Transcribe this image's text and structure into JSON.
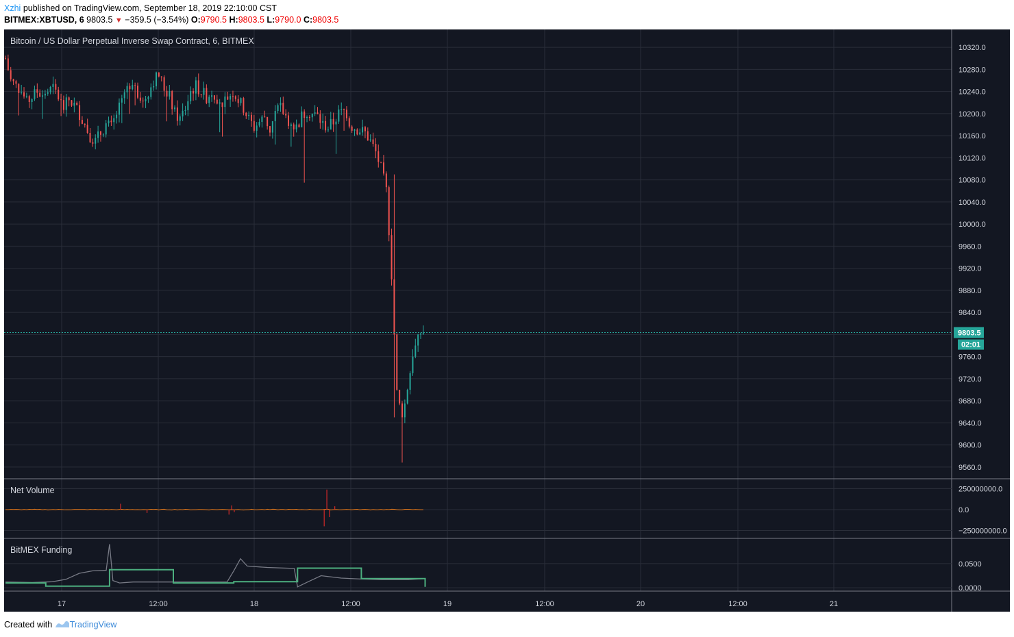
{
  "header": {
    "user": "Xzhi",
    "published_text": "published on TradingView.com, September 18, 2019 22:10:00 CST",
    "symbol": "BITMEX:XBTUSD, 6",
    "last": "9803.5",
    "change": "−359.5 (−3.54%)",
    "o_label": "O:",
    "o_value": "9790.5",
    "h_label": "H:",
    "h_value": "9803.5",
    "l_label": "L:",
    "l_value": "9790.0",
    "c_label": "C:",
    "c_value": "9803.5"
  },
  "footer": {
    "created_with": "Created with",
    "brand": "TradingView"
  },
  "colors": {
    "background": "#131722",
    "grid": "#2a2e39",
    "up": "#26a69a",
    "down": "#ef5350",
    "price_line": "#26a69a",
    "funding": "#4caf7f",
    "funding_premium": "#787b86",
    "volume_pos": "#f57f17",
    "volume_neg": "#c62828"
  },
  "chart_data": [
    {
      "type": "candlestick",
      "title": "Bitcoin / US Dollar Perpetual Inverse Swap Contract, 6, BITMEX",
      "ylim": [
        9540,
        10340
      ],
      "y_ticks": [
        "10320.0",
        "10280.0",
        "10240.0",
        "10200.0",
        "10160.0",
        "10120.0",
        "10080.0",
        "10040.0",
        "10000.0",
        "9960.0",
        "9920.0",
        "9880.0",
        "9840.0",
        "9800.0",
        "9760.0",
        "9720.0",
        "9680.0",
        "9640.0",
        "9600.0",
        "9560.0"
      ],
      "current_price": "9803.5",
      "countdown": "02:01",
      "x_ticks": [
        "17",
        "12:00",
        "18",
        "12:00",
        "19",
        "12:00",
        "20",
        "12:00",
        "21"
      ],
      "path_close": [
        [
          0,
          10300
        ],
        [
          2,
          10260
        ],
        [
          4,
          10250
        ],
        [
          6,
          10240
        ],
        [
          8,
          10220
        ],
        [
          10,
          10230
        ],
        [
          12,
          10240
        ],
        [
          14,
          10235
        ],
        [
          16,
          10240
        ],
        [
          18,
          10245
        ],
        [
          20,
          10230
        ],
        [
          22,
          10210
        ],
        [
          24,
          10225
        ],
        [
          26,
          10215
        ],
        [
          28,
          10200
        ],
        [
          30,
          10180
        ],
        [
          32,
          10160
        ],
        [
          34,
          10150
        ],
        [
          36,
          10165
        ],
        [
          38,
          10180
        ],
        [
          40,
          10175
        ],
        [
          42,
          10200
        ],
        [
          44,
          10220
        ],
        [
          46,
          10250
        ],
        [
          48,
          10260
        ],
        [
          50,
          10240
        ],
        [
          52,
          10220
        ],
        [
          54,
          10240
        ],
        [
          56,
          10260
        ],
        [
          58,
          10270
        ],
        [
          60,
          10245
        ],
        [
          62,
          10230
        ],
        [
          64,
          10200
        ],
        [
          66,
          10190
        ],
        [
          68,
          10210
        ],
        [
          70,
          10240
        ],
        [
          72,
          10250
        ],
        [
          74,
          10240
        ],
        [
          76,
          10230
        ],
        [
          78,
          10240
        ],
        [
          80,
          10230
        ],
        [
          82,
          10220
        ],
        [
          84,
          10230
        ],
        [
          86,
          10240
        ],
        [
          88,
          10225
        ],
        [
          90,
          10210
        ],
        [
          92,
          10190
        ],
        [
          94,
          10175
        ],
        [
          96,
          10185
        ],
        [
          98,
          10195
        ],
        [
          100,
          10170
        ],
        [
          102,
          10200
        ],
        [
          104,
          10210
        ],
        [
          106,
          10195
        ],
        [
          108,
          10180
        ],
        [
          110,
          10175
        ],
        [
          112,
          10195
        ],
        [
          114,
          10205
        ],
        [
          116,
          10200
        ],
        [
          118,
          10195
        ],
        [
          120,
          10180
        ],
        [
          122,
          10175
        ],
        [
          124,
          10185
        ],
        [
          126,
          10200
        ],
        [
          128,
          10205
        ],
        [
          130,
          10180
        ],
        [
          132,
          10175
        ],
        [
          134,
          10170
        ],
        [
          136,
          10165
        ],
        [
          138,
          10150
        ],
        [
          140,
          10130
        ],
        [
          142,
          10100
        ],
        [
          144,
          10060
        ],
        [
          146,
          9900
        ],
        [
          148,
          9700
        ],
        [
          150,
          9650
        ],
        [
          152,
          9700
        ],
        [
          154,
          9760
        ],
        [
          156,
          9800
        ],
        [
          158,
          9803.5
        ]
      ],
      "annotations": {
        "low_wick": 9568,
        "high_mark": 10305
      }
    },
    {
      "type": "line",
      "title": "Net Volume",
      "y_ticks": [
        "250000000.0",
        "0.0",
        "−250000000.0"
      ],
      "ylim": [
        -320000000,
        320000000
      ],
      "spikes": [
        [
          43,
          70000000
        ],
        [
          53,
          -40000000
        ],
        [
          84,
          -60000000
        ],
        [
          85,
          50000000
        ],
        [
          86,
          -30000000
        ],
        [
          120,
          -200000000
        ],
        [
          121,
          240000000
        ],
        [
          122,
          -90000000
        ],
        [
          124,
          40000000
        ]
      ]
    },
    {
      "type": "line",
      "title": "BitMEX Funding",
      "y_ticks": [
        "0.0500",
        "0.0000"
      ],
      "ylim": [
        -0.004,
        0.095
      ],
      "funding_steps": [
        [
          0,
          0.01
        ],
        [
          12,
          0.01
        ],
        [
          12,
          0.0035
        ],
        [
          31,
          0.0035
        ],
        [
          31,
          0.0375
        ],
        [
          50,
          0.0375
        ],
        [
          50,
          0.01
        ],
        [
          68,
          0.01
        ],
        [
          68,
          0.0125
        ],
        [
          87,
          0.0125
        ],
        [
          87,
          0.0405
        ],
        [
          106,
          0.0405
        ],
        [
          106,
          0.019
        ],
        [
          125,
          0.019
        ],
        [
          125,
          0.002
        ]
      ],
      "premium": [
        [
          0,
          0.012
        ],
        [
          8,
          0.011
        ],
        [
          14,
          0.0125
        ],
        [
          18,
          0.0175
        ],
        [
          22,
          0.03
        ],
        [
          26,
          0.035
        ],
        [
          30,
          0.036
        ],
        [
          31,
          0.09
        ],
        [
          32,
          0.015
        ],
        [
          34,
          0.01
        ],
        [
          38,
          0.012
        ],
        [
          50,
          0.012
        ],
        [
          66,
          0.012
        ],
        [
          68,
          0.035
        ],
        [
          70,
          0.06
        ],
        [
          72,
          0.045
        ],
        [
          78,
          0.042
        ],
        [
          86,
          0.04
        ],
        [
          87,
          0.002
        ],
        [
          90,
          0.012
        ],
        [
          94,
          0.025
        ],
        [
          100,
          0.02
        ],
        [
          106,
          0.018
        ],
        [
          112,
          0.017
        ],
        [
          120,
          0.017
        ],
        [
          125,
          0.019
        ]
      ]
    }
  ]
}
